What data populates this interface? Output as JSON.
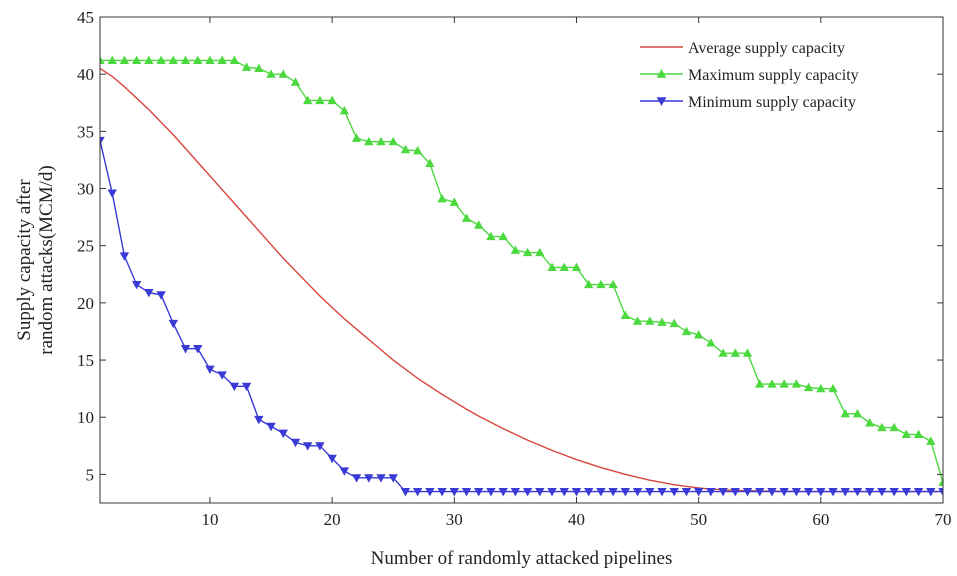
{
  "chart_data": {
    "type": "line",
    "xlabel": "Number of randomly attacked pipelines",
    "ylabel_lines": [
      "Supply capacity after",
      "random attacks(MCM/d)"
    ],
    "xlim": [
      1,
      70
    ],
    "ylim": [
      2.5,
      45
    ],
    "xticks": [
      10,
      20,
      30,
      40,
      50,
      60,
      70
    ],
    "yticks": [
      5,
      10,
      15,
      20,
      25,
      30,
      35,
      40,
      45
    ],
    "grid": false,
    "legend_position": "top-right",
    "series": [
      {
        "name": "Average supply capacity",
        "color": "#d9453c",
        "marker": "none",
        "x": [
          1,
          2,
          3,
          4,
          5,
          6,
          7,
          8,
          9,
          10,
          11,
          12,
          13,
          14,
          15,
          16,
          17,
          18,
          19,
          20,
          21,
          22,
          23,
          24,
          25,
          26,
          27,
          28,
          29,
          30,
          31,
          32,
          33,
          34,
          35,
          36,
          37,
          38,
          39,
          40,
          41,
          42,
          43,
          44,
          45,
          46,
          47,
          48,
          49,
          50,
          51,
          52,
          53,
          54,
          55,
          56,
          57,
          58,
          59,
          60,
          61,
          62,
          63,
          64,
          65,
          66,
          67,
          68,
          69,
          70
        ],
        "values": [
          40.5,
          39.8,
          38.9,
          37.9,
          36.9,
          35.8,
          34.7,
          33.5,
          32.3,
          31.1,
          29.9,
          28.7,
          27.5,
          26.3,
          25.1,
          23.9,
          22.8,
          21.7,
          20.6,
          19.6,
          18.6,
          17.7,
          16.8,
          15.9,
          15.0,
          14.2,
          13.4,
          12.7,
          12.0,
          11.35,
          10.7,
          10.1,
          9.55,
          9.0,
          8.5,
          8.0,
          7.55,
          7.1,
          6.7,
          6.3,
          5.95,
          5.6,
          5.3,
          5.0,
          4.75,
          4.5,
          4.3,
          4.1,
          3.95,
          3.82,
          3.72,
          3.65,
          3.6,
          3.57,
          3.55,
          3.53,
          3.52,
          3.51,
          3.5,
          3.5,
          3.5,
          3.5,
          3.5,
          3.5,
          3.5,
          3.5,
          3.5,
          3.5,
          3.5,
          3.5
        ]
      },
      {
        "name": "Maximum supply capacity",
        "color": "#4cd93f",
        "marker": "triangle-up",
        "x": [
          1,
          2,
          3,
          4,
          5,
          6,
          7,
          8,
          9,
          10,
          11,
          12,
          13,
          14,
          15,
          16,
          17,
          18,
          19,
          20,
          21,
          22,
          23,
          24,
          25,
          26,
          27,
          28,
          29,
          30,
          31,
          32,
          33,
          34,
          35,
          36,
          37,
          38,
          39,
          40,
          41,
          42,
          43,
          44,
          45,
          46,
          47,
          48,
          49,
          50,
          51,
          52,
          53,
          54,
          55,
          56,
          57,
          58,
          59,
          60,
          61,
          62,
          63,
          64,
          65,
          66,
          67,
          68,
          69,
          70
        ],
        "values": [
          41.2,
          41.2,
          41.2,
          41.2,
          41.2,
          41.2,
          41.2,
          41.2,
          41.2,
          41.2,
          41.2,
          41.2,
          40.6,
          40.5,
          40.0,
          40.0,
          39.3,
          37.7,
          37.7,
          37.7,
          36.8,
          34.4,
          34.1,
          34.1,
          34.1,
          33.4,
          33.3,
          32.2,
          29.1,
          28.8,
          27.4,
          26.8,
          25.8,
          25.8,
          24.6,
          24.4,
          24.4,
          23.1,
          23.1,
          23.1,
          21.6,
          21.6,
          21.6,
          18.9,
          18.4,
          18.4,
          18.3,
          18.2,
          17.5,
          17.2,
          16.5,
          15.6,
          15.6,
          15.6,
          12.9,
          12.9,
          12.9,
          12.9,
          12.6,
          12.5,
          12.5,
          10.3,
          10.3,
          9.5,
          9.1,
          9.1,
          8.5,
          8.5,
          7.9,
          4.3
        ]
      },
      {
        "name": "Minimum supply capacity",
        "color": "#3a3ad6",
        "marker": "triangle-down",
        "x": [
          1,
          2,
          3,
          4,
          5,
          6,
          7,
          8,
          9,
          10,
          11,
          12,
          13,
          14,
          15,
          16,
          17,
          18,
          19,
          20,
          21,
          22,
          23,
          24,
          25,
          26,
          27,
          28,
          29,
          30,
          31,
          32,
          33,
          34,
          35,
          36,
          37,
          38,
          39,
          40,
          41,
          42,
          43,
          44,
          45,
          46,
          47,
          48,
          49,
          50,
          51,
          52,
          53,
          54,
          55,
          56,
          57,
          58,
          59,
          60,
          61,
          62,
          63,
          64,
          65,
          66,
          67,
          68,
          69,
          70
        ],
        "values": [
          34.2,
          29.6,
          24.1,
          21.6,
          20.9,
          20.7,
          18.2,
          16.0,
          16.0,
          14.2,
          13.7,
          12.7,
          12.7,
          9.8,
          9.2,
          8.6,
          7.8,
          7.5,
          7.5,
          6.4,
          5.3,
          4.7,
          4.7,
          4.7,
          4.7,
          3.5,
          3.5,
          3.5,
          3.5,
          3.5,
          3.5,
          3.5,
          3.5,
          3.5,
          3.5,
          3.5,
          3.5,
          3.5,
          3.5,
          3.5,
          3.5,
          3.5,
          3.5,
          3.5,
          3.5,
          3.5,
          3.5,
          3.5,
          3.5,
          3.5,
          3.5,
          3.5,
          3.5,
          3.5,
          3.5,
          3.5,
          3.5,
          3.5,
          3.5,
          3.5,
          3.5,
          3.5,
          3.5,
          3.5,
          3.5,
          3.5,
          3.5,
          3.5,
          3.5,
          3.5
        ]
      }
    ]
  }
}
